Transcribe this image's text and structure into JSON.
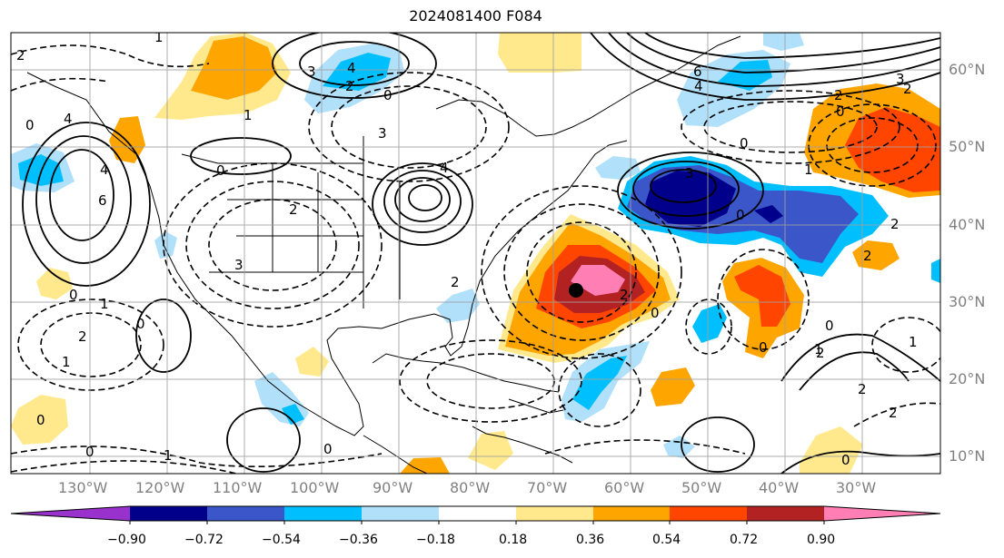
{
  "title": "2024081400 F084",
  "lat_labels": [
    "60°N",
    "50°N",
    "40°N",
    "30°N",
    "20°N",
    "10°N"
  ],
  "lon_labels": [
    "130°W",
    "120°W",
    "110°W",
    "100°W",
    "90°W",
    "80°W",
    "70°W",
    "60°W",
    "50°W",
    "40°W",
    "30°W"
  ],
  "contour_labels": [
    "2",
    "1",
    "0",
    "4",
    "3",
    "1",
    "0",
    "2",
    "4",
    "6",
    "4",
    "2",
    "3",
    "2",
    "0",
    "3",
    "0",
    "4",
    "6",
    "4",
    "2",
    "1",
    "0",
    "3",
    "2",
    "0",
    "2",
    "3",
    "2",
    "0",
    "2",
    "1",
    "0",
    "2",
    "1",
    "0",
    "0",
    "1",
    "0",
    "2",
    "2",
    "0",
    "1",
    "1",
    "2",
    "0",
    "0",
    "0"
  ],
  "colorbar": {
    "ticks": [
      "−0.90",
      "−0.72",
      "−0.54",
      "−0.36",
      "−0.18",
      "0.18",
      "0.36",
      "0.54",
      "0.72",
      "0.90"
    ],
    "colors": [
      "#9932cc",
      "#00008b",
      "#3a56c8",
      "#00bfff",
      "#b0e0fa",
      "#ffffff",
      "#ffe98c",
      "#ffa500",
      "#ff4500",
      "#b22222",
      "#ff7fb4"
    ]
  },
  "markers": [
    {
      "name": "storm-center",
      "lat": 31.6,
      "lon": -67.5
    }
  ]
}
